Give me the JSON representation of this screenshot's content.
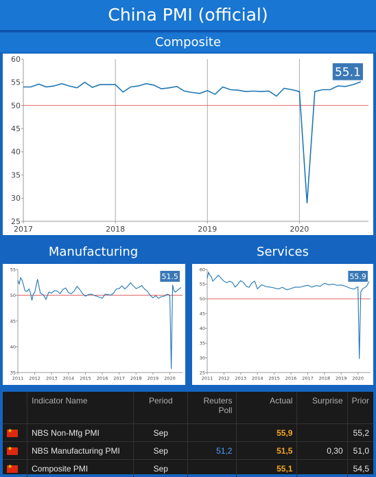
{
  "header": {
    "title": "China PMI (official)"
  },
  "sections": {
    "composite": "Composite",
    "manufacturing": "Manufacturing",
    "services": "Services"
  },
  "colors": {
    "line": "#1f77b4",
    "ref": "#e06666",
    "badge": "#3a78b5",
    "accent": "#f5a623",
    "poll": "#4aa3ff"
  },
  "chart_data": [
    {
      "id": "composite",
      "type": "line",
      "title": "Composite",
      "ylim": [
        25,
        60
      ],
      "yticks": [
        25,
        30,
        35,
        40,
        45,
        50,
        55,
        60
      ],
      "xlim": [
        2017,
        2020.75
      ],
      "xticks": [
        2017,
        2018,
        2019,
        2020
      ],
      "reference_line": 50,
      "badge": "55.1",
      "series": [
        {
          "x": [
            2017.0,
            2017.083,
            2017.167,
            2017.25,
            2017.333,
            2017.417,
            2017.5,
            2017.583,
            2017.667,
            2017.75,
            2017.833,
            2017.917,
            2018.0,
            2018.083,
            2018.167,
            2018.25,
            2018.333,
            2018.417,
            2018.5,
            2018.583,
            2018.667,
            2018.75,
            2018.833,
            2018.917,
            2019.0,
            2019.083,
            2019.167,
            2019.25,
            2019.333,
            2019.417,
            2019.5,
            2019.583,
            2019.667,
            2019.75,
            2019.833,
            2019.917,
            2020.0,
            2020.083,
            2020.167,
            2020.25,
            2020.333,
            2020.417,
            2020.5,
            2020.583,
            2020.667
          ],
          "values": [
            54.0,
            54.0,
            54.6,
            54.0,
            54.2,
            54.7,
            54.2,
            53.8,
            55.0,
            53.9,
            54.5,
            54.5,
            54.5,
            52.9,
            54.0,
            54.2,
            54.7,
            54.4,
            53.6,
            53.8,
            54.1,
            53.1,
            52.8,
            52.6,
            53.2,
            52.4,
            54.0,
            53.4,
            53.3,
            53.0,
            53.1,
            53.0,
            53.1,
            52.0,
            53.7,
            53.4,
            53.0,
            28.9,
            53.0,
            53.4,
            53.4,
            54.2,
            54.1,
            54.5,
            55.1
          ]
        }
      ]
    },
    {
      "id": "manufacturing",
      "type": "line",
      "title": "Manufacturing",
      "ylim": [
        35,
        55
      ],
      "yticks": [
        35,
        40,
        45,
        50,
        55
      ],
      "xlim": [
        2011,
        2020.75
      ],
      "xticks": [
        2011,
        2012,
        2013,
        2014,
        2015,
        2016,
        2017,
        2018,
        2019,
        2020
      ],
      "reference_line": 50,
      "badge": "51.5",
      "series": [
        {
          "x": [
            2011.0,
            2011.083,
            2011.167,
            2011.25,
            2011.333,
            2011.417,
            2011.5,
            2011.583,
            2011.667,
            2011.75,
            2011.833,
            2011.917,
            2012.0,
            2012.167,
            2012.333,
            2012.5,
            2012.667,
            2012.833,
            2013.0,
            2013.167,
            2013.333,
            2013.5,
            2013.667,
            2013.833,
            2014.0,
            2014.167,
            2014.333,
            2014.5,
            2014.667,
            2014.833,
            2015.0,
            2015.167,
            2015.333,
            2015.5,
            2015.667,
            2015.833,
            2016.0,
            2016.167,
            2016.333,
            2016.5,
            2016.667,
            2016.833,
            2017.0,
            2017.167,
            2017.333,
            2017.5,
            2017.667,
            2017.833,
            2018.0,
            2018.167,
            2018.333,
            2018.5,
            2018.667,
            2018.833,
            2019.0,
            2019.167,
            2019.333,
            2019.5,
            2019.667,
            2019.833,
            2020.0,
            2020.083,
            2020.167,
            2020.25,
            2020.333,
            2020.5,
            2020.667
          ],
          "values": [
            52.9,
            52.2,
            53.4,
            52.9,
            52.0,
            50.9,
            50.7,
            50.9,
            51.2,
            50.4,
            49.0,
            50.3,
            50.5,
            53.1,
            50.4,
            50.1,
            49.2,
            50.6,
            50.4,
            50.9,
            50.8,
            50.3,
            51.1,
            51.4,
            50.5,
            50.3,
            50.8,
            51.7,
            51.1,
            50.3,
            49.8,
            50.1,
            50.2,
            50.0,
            49.8,
            49.6,
            49.4,
            50.2,
            50.1,
            50.0,
            50.4,
            51.2,
            51.3,
            51.8,
            51.2,
            51.7,
            52.4,
            51.8,
            51.3,
            51.5,
            51.9,
            51.2,
            50.8,
            50.0,
            49.5,
            49.9,
            49.4,
            49.7,
            49.8,
            50.2,
            50.0,
            35.7,
            52.0,
            50.8,
            50.6,
            51.1,
            51.5
          ]
        }
      ]
    },
    {
      "id": "services",
      "type": "line",
      "title": "Services",
      "ylim": [
        25,
        60
      ],
      "yticks": [
        25,
        30,
        35,
        40,
        45,
        50,
        55,
        60
      ],
      "xlim": [
        2011,
        2020.75
      ],
      "xticks": [
        2011,
        2012,
        2013,
        2014,
        2015,
        2016,
        2017,
        2018,
        2019,
        2020
      ],
      "reference_line": 50,
      "badge": "55.9",
      "series": [
        {
          "x": [
            2011.0,
            2011.083,
            2011.167,
            2011.25,
            2011.333,
            2011.5,
            2011.667,
            2011.833,
            2012.0,
            2012.167,
            2012.333,
            2012.5,
            2012.667,
            2012.833,
            2013.0,
            2013.167,
            2013.333,
            2013.5,
            2013.667,
            2013.833,
            2014.0,
            2014.25,
            2014.5,
            2014.75,
            2015.0,
            2015.25,
            2015.5,
            2015.75,
            2016.0,
            2016.25,
            2016.5,
            2016.75,
            2017.0,
            2017.25,
            2017.5,
            2017.75,
            2018.0,
            2018.25,
            2018.5,
            2018.75,
            2019.0,
            2019.25,
            2019.5,
            2019.75,
            2020.0,
            2020.083,
            2020.167,
            2020.25,
            2020.333,
            2020.5,
            2020.667
          ],
          "values": [
            57.0,
            59.0,
            58.0,
            57.5,
            56.0,
            57.0,
            58.0,
            57.0,
            56.0,
            55.5,
            56.0,
            55.6,
            54.0,
            55.0,
            56.2,
            55.6,
            54.3,
            53.9,
            55.4,
            56.0,
            53.4,
            54.8,
            54.2,
            54.0,
            53.7,
            53.4,
            53.9,
            53.1,
            53.5,
            54.0,
            53.9,
            54.3,
            54.6,
            54.0,
            54.5,
            54.3,
            55.3,
            54.8,
            55.0,
            54.6,
            54.7,
            54.3,
            53.7,
            53.3,
            54.1,
            29.6,
            52.3,
            53.2,
            53.6,
            54.2,
            55.9
          ]
        }
      ]
    }
  ],
  "table": {
    "headers": {
      "name": "Indicator Name",
      "period": "Period",
      "poll": "Reuters Poll",
      "actual": "Actual",
      "surprise": "Surprise",
      "prior": "Prior"
    },
    "rows": [
      {
        "flag": "china-flag-icon",
        "name": "NBS Non-Mfg PMI",
        "period": "Sep",
        "poll": "",
        "actual": "55,9",
        "surprise": "",
        "prior": "55,2"
      },
      {
        "flag": "china-flag-icon",
        "name": "NBS Manufacturing PMI",
        "period": "Sep",
        "poll": "51,2",
        "actual": "51,5",
        "surprise": "0,30",
        "prior": "51,0"
      },
      {
        "flag": "china-flag-icon",
        "name": "Composite PMI",
        "period": "Sep",
        "poll": "",
        "actual": "55,1",
        "surprise": "",
        "prior": "54,5"
      }
    ]
  }
}
